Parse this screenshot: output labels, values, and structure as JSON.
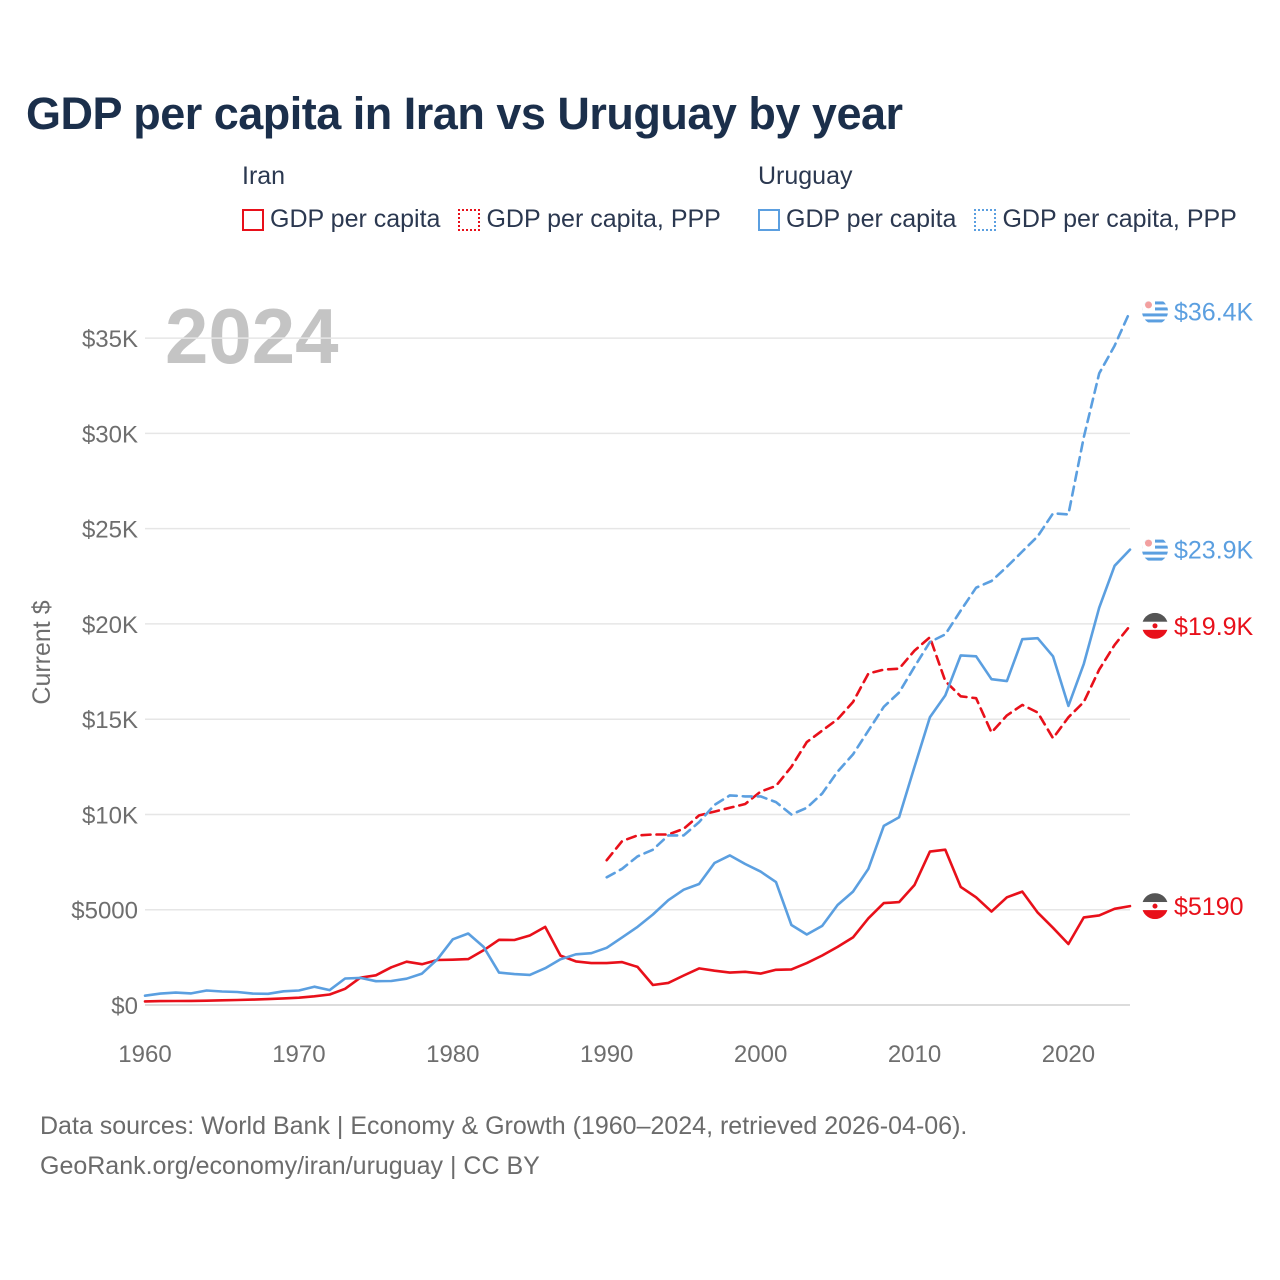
{
  "title": "GDP per capita in Iran vs Uruguay by year",
  "legend": [
    {
      "country": "Iran",
      "items": [
        {
          "label": "GDP per capita",
          "color": "#e8101a",
          "style": "solid"
        },
        {
          "label": "GDP per capita, PPP",
          "color": "#e8101a",
          "style": "dotted"
        }
      ]
    },
    {
      "country": "Uruguay",
      "items": [
        {
          "label": "GDP per capita",
          "color": "#5b9fe0",
          "style": "solid"
        },
        {
          "label": "GDP per capita, PPP",
          "color": "#5b9fe0",
          "style": "dotted"
        }
      ]
    }
  ],
  "footer": {
    "line1": "Data sources: World Bank | Economy & Growth (1960–2024, retrieved 2026-04-06).",
    "line2": "GeoRank.org/economy/iran/uruguay | CC BY"
  },
  "chart_data": {
    "type": "line",
    "title": "GDP per capita in Iran vs Uruguay by year",
    "year_label": "2024",
    "xlabel": "",
    "ylabel": "Current $",
    "xlim": [
      1960,
      2024
    ],
    "ylim": [
      0,
      37000
    ],
    "xticks": [
      1960,
      1970,
      1980,
      1990,
      2000,
      2010,
      2020
    ],
    "yticks": [
      0,
      5000,
      10000,
      15000,
      20000,
      25000,
      30000,
      35000
    ],
    "ytick_labels": [
      "$0",
      "$5000",
      "$10K",
      "$15K",
      "$20K",
      "$25K",
      "$30K",
      "$35K"
    ],
    "grid": true,
    "series": [
      {
        "name": "Iran GDP per capita",
        "country": "Iran",
        "color": "#e8101a",
        "dash": "solid",
        "end_label": "$5190",
        "flag": "iran",
        "x": [
          1960,
          1961,
          1962,
          1963,
          1964,
          1965,
          1966,
          1967,
          1968,
          1969,
          1970,
          1971,
          1972,
          1973,
          1974,
          1975,
          1976,
          1977,
          1978,
          1979,
          1980,
          1981,
          1982,
          1983,
          1984,
          1985,
          1986,
          1987,
          1988,
          1989,
          1990,
          1991,
          1992,
          1993,
          1994,
          1995,
          1996,
          1997,
          1998,
          1999,
          2000,
          2001,
          2002,
          2003,
          2004,
          2005,
          2006,
          2007,
          2008,
          2009,
          2010,
          2011,
          2012,
          2013,
          2014,
          2015,
          2016,
          2017,
          2018,
          2019,
          2020,
          2021,
          2022,
          2023,
          2024
        ],
        "values": [
          190,
          205,
          210,
          215,
          225,
          245,
          265,
          285,
          310,
          345,
          385,
          455,
          550,
          850,
          1440,
          1560,
          1980,
          2270,
          2140,
          2360,
          2380,
          2410,
          2870,
          3420,
          3410,
          3650,
          4100,
          2590,
          2290,
          2200,
          2200,
          2250,
          2000,
          1050,
          1160,
          1550,
          1920,
          1800,
          1700,
          1740,
          1650,
          1850,
          1870,
          2200,
          2600,
          3050,
          3550,
          4550,
          5350,
          5400,
          6300,
          8050,
          8150,
          6200,
          5650,
          4900,
          5650,
          5950,
          4850,
          4050,
          3200,
          4600,
          4700,
          5050,
          5190
        ]
      },
      {
        "name": "Iran GDP per capita, PPP",
        "country": "Iran",
        "color": "#e8101a",
        "dash": "dashed",
        "end_label": "$19.9K",
        "flag": "iran",
        "x": [
          1990,
          1991,
          1992,
          1993,
          1994,
          1995,
          1996,
          1997,
          1998,
          1999,
          2000,
          2001,
          2002,
          2003,
          2004,
          2005,
          2006,
          2007,
          2008,
          2009,
          2010,
          2011,
          2012,
          2013,
          2014,
          2015,
          2016,
          2017,
          2018,
          2019,
          2020,
          2021,
          2022,
          2023,
          2024
        ],
        "values": [
          7600,
          8600,
          8900,
          8950,
          8950,
          9250,
          9950,
          10150,
          10350,
          10550,
          11200,
          11500,
          12500,
          13800,
          14400,
          15000,
          15900,
          17400,
          17600,
          17650,
          18600,
          19300,
          17000,
          16200,
          16100,
          14300,
          15200,
          15750,
          15350,
          14000,
          15100,
          15900,
          17600,
          18900,
          19900
        ]
      },
      {
        "name": "Uruguay GDP per capita",
        "country": "Uruguay",
        "color": "#5b9fe0",
        "dash": "solid",
        "end_label": "$23.9K",
        "flag": "uruguay",
        "x": [
          1960,
          1961,
          1962,
          1963,
          1964,
          1965,
          1966,
          1967,
          1968,
          1969,
          1970,
          1971,
          1972,
          1973,
          1974,
          1975,
          1976,
          1977,
          1978,
          1979,
          1980,
          1981,
          1982,
          1983,
          1984,
          1985,
          1986,
          1987,
          1988,
          1989,
          1990,
          1991,
          1992,
          1993,
          1994,
          1995,
          1996,
          1997,
          1998,
          1999,
          2000,
          2001,
          2002,
          2003,
          2004,
          2005,
          2006,
          2007,
          2008,
          2009,
          2010,
          2011,
          2012,
          2013,
          2014,
          2015,
          2016,
          2017,
          2018,
          2019,
          2020,
          2021,
          2022,
          2023,
          2024
        ],
        "values": [
          490,
          600,
          650,
          610,
          760,
          710,
          680,
          600,
          590,
          720,
          760,
          960,
          780,
          1390,
          1420,
          1250,
          1260,
          1380,
          1650,
          2400,
          3450,
          3750,
          3050,
          1700,
          1620,
          1580,
          1930,
          2400,
          2660,
          2720,
          3000,
          3550,
          4100,
          4750,
          5500,
          6050,
          6350,
          7450,
          7850,
          7400,
          7000,
          6450,
          4200,
          3700,
          4150,
          5250,
          5950,
          7150,
          9400,
          9850,
          12500,
          15100,
          16250,
          18350,
          18300,
          17100,
          17000,
          19200,
          19250,
          18300,
          15700,
          17900,
          20850,
          23050,
          23900
        ]
      },
      {
        "name": "Uruguay GDP per capita, PPP",
        "country": "Uruguay",
        "color": "#5b9fe0",
        "dash": "dashed",
        "end_label": "$36.4K",
        "flag": "uruguay",
        "x": [
          1990,
          1991,
          1992,
          1993,
          1994,
          1995,
          1996,
          1997,
          1998,
          1999,
          2000,
          2001,
          2002,
          2003,
          2004,
          2005,
          2006,
          2007,
          2008,
          2009,
          2010,
          2011,
          2012,
          2013,
          2014,
          2015,
          2016,
          2017,
          2018,
          2019,
          2020,
          2021,
          2022,
          2023,
          2024
        ],
        "values": [
          6700,
          7150,
          7800,
          8150,
          8900,
          8900,
          9600,
          10500,
          11000,
          10950,
          10950,
          10650,
          10000,
          10350,
          11100,
          12250,
          13150,
          14400,
          15650,
          16400,
          17750,
          19050,
          19450,
          20700,
          21900,
          22250,
          23000,
          23800,
          24600,
          25800,
          25750,
          29800,
          33150,
          34600,
          36400
        ]
      }
    ]
  }
}
